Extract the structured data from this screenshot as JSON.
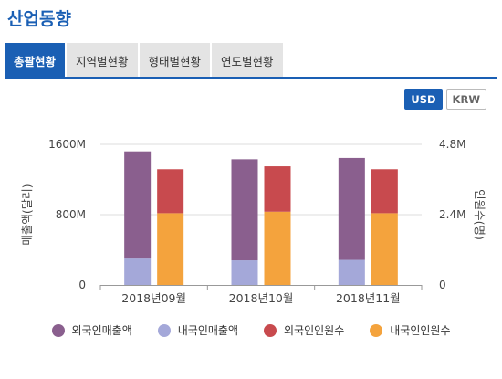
{
  "page": {
    "title": "산업동향"
  },
  "tabs": [
    {
      "label": "총괄현황",
      "active": true
    },
    {
      "label": "지역별현황",
      "active": false
    },
    {
      "label": "형태별현황",
      "active": false
    },
    {
      "label": "연도별현황",
      "active": false
    }
  ],
  "currency": {
    "usd": "USD",
    "krw": "KRW",
    "selected": "USD"
  },
  "colors": {
    "accent": "#1a5fb4",
    "foreign_sales": "#8a5f8e",
    "domestic_sales": "#a4a8d9",
    "foreign_people": "#c84a4e",
    "domestic_people": "#f4a33d"
  },
  "chart_data": {
    "type": "bar",
    "categories": [
      "2018년09월",
      "2018년10월",
      "2018년11월"
    ],
    "ylabel": "매출액(달러)",
    "y2label": "인원수(명)",
    "ylim": [
      0,
      1600
    ],
    "y2lim": [
      0,
      4.8
    ],
    "y_ticks": [
      "0",
      "800M",
      "1600M"
    ],
    "y2_ticks": [
      "0",
      "2.4M",
      "4.8M"
    ],
    "stacks": [
      {
        "axis": "left",
        "series": [
          {
            "name": "내국인매출액",
            "values": [
              300,
              280,
              285
            ]
          },
          {
            "name": "외국인매출액",
            "values": [
              1220,
              1150,
              1160
            ]
          }
        ]
      },
      {
        "axis": "right",
        "series": [
          {
            "name": "내국인인원수",
            "values": [
              2.45,
              2.5,
              2.45
            ]
          },
          {
            "name": "외국인인원수",
            "values": [
              1.5,
              1.55,
              1.5
            ]
          }
        ]
      }
    ],
    "legend": [
      {
        "name": "외국인매출액",
        "color": "#8a5f8e"
      },
      {
        "name": "내국인매출액",
        "color": "#a4a8d9"
      },
      {
        "name": "외국인인원수",
        "color": "#c84a4e"
      },
      {
        "name": "내국인인원수",
        "color": "#f4a33d"
      }
    ],
    "legend_position": "bottom"
  }
}
